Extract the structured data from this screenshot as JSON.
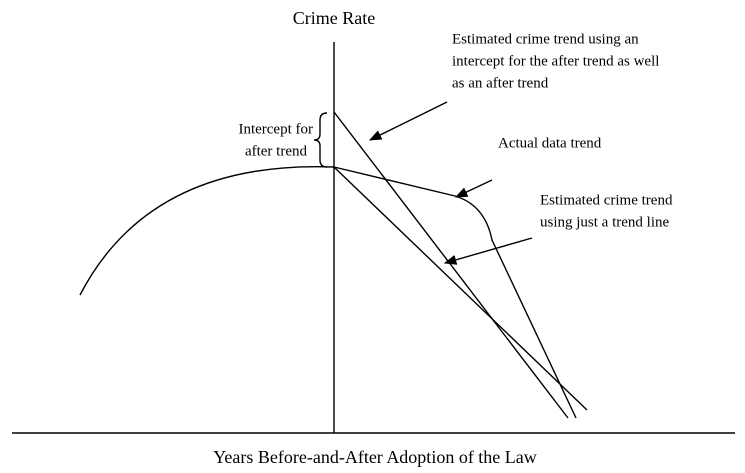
{
  "axes": {
    "y_label": "Crime Rate",
    "x_label": "Years Before-and-After Adoption of the Law"
  },
  "annotations": [
    {
      "lines": [
        "Estimated crime trend using an",
        "intercept for the after trend as well",
        "as an after trend"
      ]
    },
    {
      "lines": [
        "Intercept for",
        "after trend"
      ]
    },
    {
      "lines": [
        "Actual data trend"
      ]
    },
    {
      "lines": [
        "Estimated crime trend",
        "using just a trend line"
      ]
    }
  ]
}
